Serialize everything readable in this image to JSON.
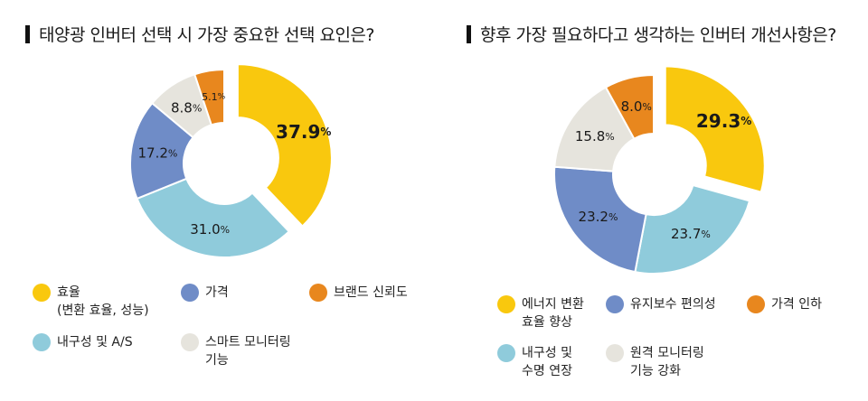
{
  "chart_data": [
    {
      "type": "pie",
      "title": "태양광 인버터 선택 시 가장 중요한 선택 요인은?",
      "slices": [
        {
          "label": "효율",
          "sublabel": "(변환 효율, 성능)",
          "value": 37.9,
          "display": "37.9",
          "color": "#F9C80E"
        },
        {
          "label": "내구성 및 A/S",
          "sublabel": "",
          "value": 31.0,
          "display": "31.0",
          "color": "#8FCBDB"
        },
        {
          "label": "가격",
          "sublabel": "",
          "value": 17.2,
          "display": "17.2",
          "color": "#6F8CC7"
        },
        {
          "label": "스마트 모니터링",
          "sublabel": "기능",
          "value": 8.8,
          "display": "8.8",
          "color": "#E6E4DD"
        },
        {
          "label": "브랜드 신뢰도",
          "sublabel": "",
          "value": 5.1,
          "display": "5.1",
          "color": "#E8871E"
        }
      ],
      "unit": "%"
    },
    {
      "type": "pie",
      "title": "향후 가장 필요하다고 생각하는 인버터 개선사항은?",
      "slices": [
        {
          "label": "에너지 변환",
          "sublabel": "효율 향상",
          "value": 29.3,
          "display": "29.3",
          "color": "#F9C80E"
        },
        {
          "label": "내구성 및",
          "sublabel": "수명 연장",
          "value": 23.7,
          "display": "23.7",
          "color": "#8FCBDB"
        },
        {
          "label": "유지보수 편의성",
          "sublabel": "",
          "value": 23.2,
          "display": "23.2",
          "color": "#6F8CC7"
        },
        {
          "label": "원격 모니터링",
          "sublabel": "기능 강화",
          "value": 15.8,
          "display": "15.8",
          "color": "#E6E4DD"
        },
        {
          "label": "가격 인하",
          "sublabel": "",
          "value": 8.0,
          "display": "8.0",
          "color": "#E8871E"
        }
      ],
      "unit": "%"
    }
  ]
}
